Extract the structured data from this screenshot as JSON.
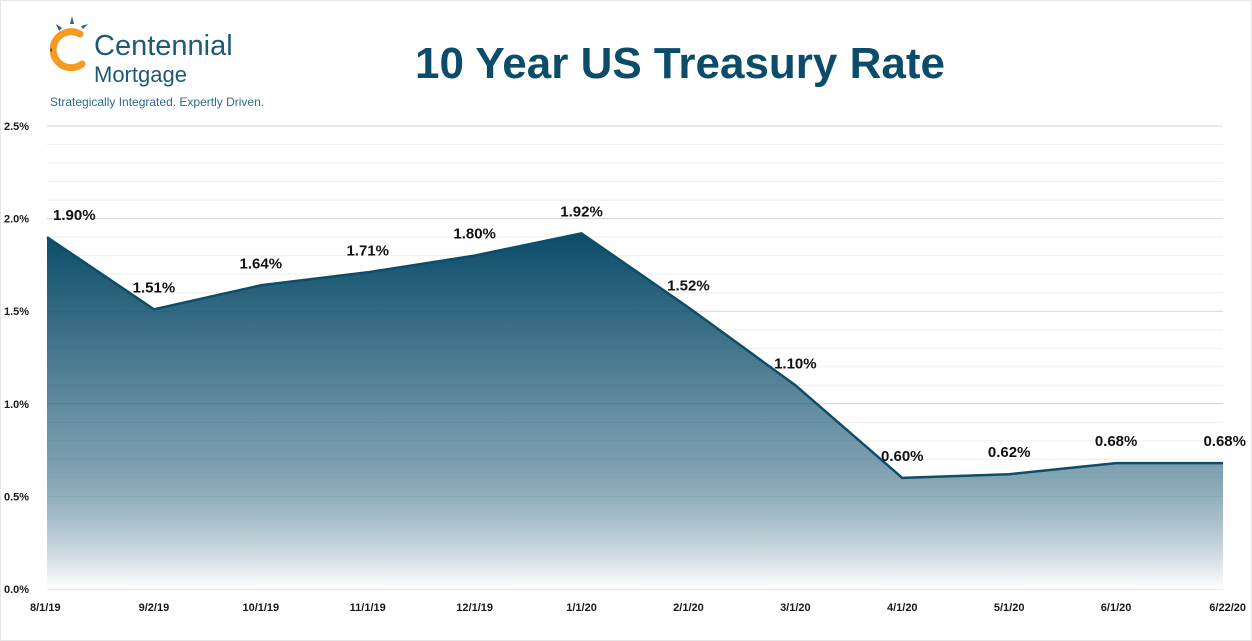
{
  "header": {
    "logo_name": "Centennial",
    "logo_sub": "Mortgage",
    "tagline": "Strategically Integrated. Expertly Driven.",
    "title": "10 Year US Treasury Rate"
  },
  "chart_data": {
    "type": "area",
    "title": "10 Year US Treasury Rate",
    "xlabel": "",
    "ylabel": "",
    "categories": [
      "8/1/19",
      "9/2/19",
      "10/1/19",
      "11/1/19",
      "12/1/19",
      "1/1/20",
      "2/1/20",
      "3/1/20",
      "4/1/20",
      "5/1/20",
      "6/1/20",
      "6/22/20"
    ],
    "values": [
      1.9,
      1.51,
      1.64,
      1.71,
      1.8,
      1.92,
      1.52,
      1.1,
      0.6,
      0.62,
      0.68,
      0.68
    ],
    "data_labels": [
      "1.90%",
      "1.51%",
      "1.64%",
      "1.71%",
      "1.80%",
      "1.92%",
      "1.52%",
      "1.10%",
      "0.60%",
      "0.62%",
      "0.68%",
      "0.68%"
    ],
    "ylim": [
      0,
      2.5
    ],
    "yticks": [
      0,
      0.5,
      1.0,
      1.5,
      2.0,
      2.5
    ],
    "ytick_labels": [
      "0.0%",
      "0.5%",
      "1.0%",
      "1.5%",
      "2.0%",
      "2.5%"
    ],
    "grid": true,
    "colors": {
      "line": "#0e4d68",
      "fill_top": "#0b4c6a",
      "fill_bottom": "#ffffff",
      "grid_major": "#d4d4d4",
      "grid_minor": "#eeeeee"
    }
  }
}
